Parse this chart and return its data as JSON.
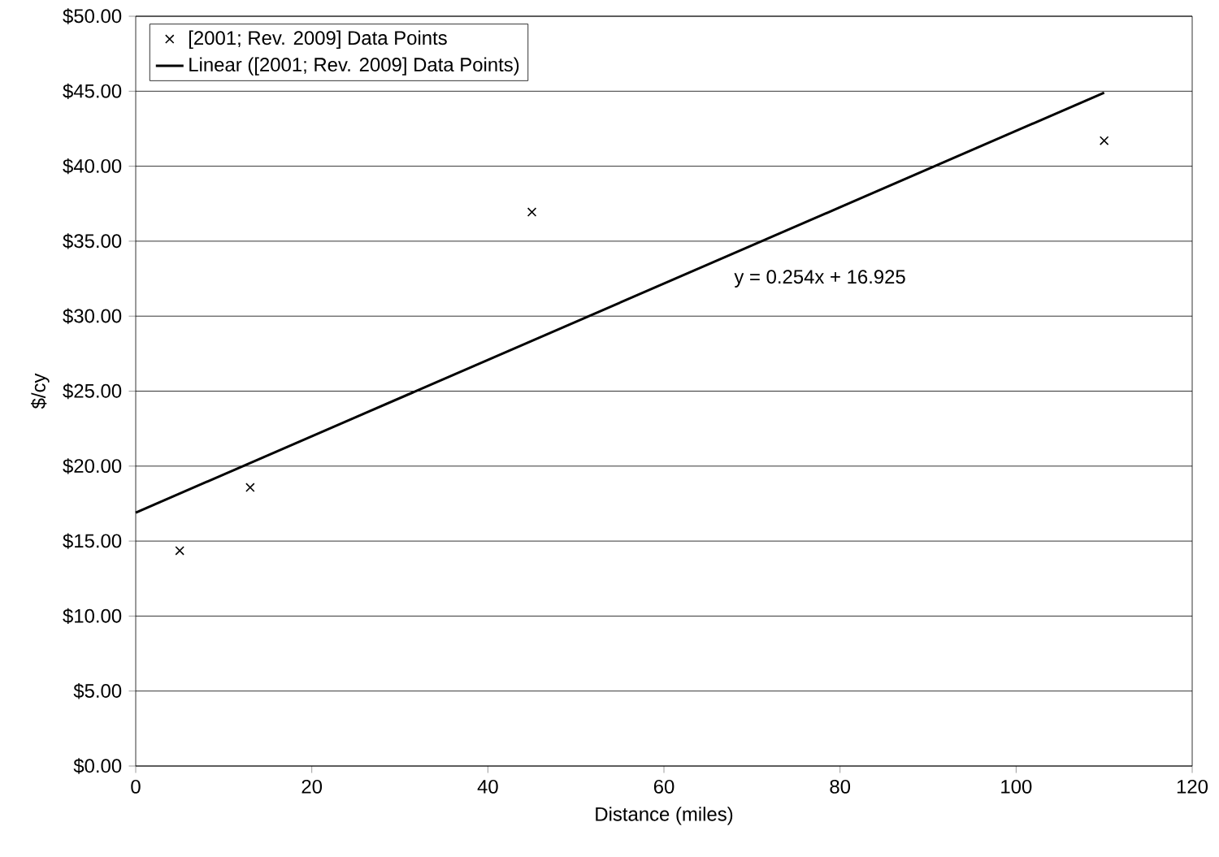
{
  "chart_data": {
    "type": "scatter",
    "xlabel": "Distance (miles)",
    "ylabel": "$/cy",
    "xlim": [
      0,
      120
    ],
    "xticks": [
      0,
      20,
      40,
      60,
      80,
      100,
      120
    ],
    "ylim": [
      0,
      50
    ],
    "yticks": [
      {
        "value": 0,
        "label": "$0.00"
      },
      {
        "value": 5,
        "label": "$5.00"
      },
      {
        "value": 10,
        "label": "$10.00"
      },
      {
        "value": 15,
        "label": "$15.00"
      },
      {
        "value": 20,
        "label": "$20.00"
      },
      {
        "value": 25,
        "label": "$25.00"
      },
      {
        "value": 30,
        "label": "$30.00"
      },
      {
        "value": 35,
        "label": "$35.00"
      },
      {
        "value": 40,
        "label": "$40.00"
      },
      {
        "value": 45,
        "label": "$45.00"
      },
      {
        "value": 50,
        "label": "$50.00"
      }
    ],
    "grid": "y",
    "legend": "top left",
    "series": [
      {
        "name": "[2001; Rev. 2009] Data Points",
        "color": "#000000",
        "marker": "cross",
        "x": [
          5,
          13,
          45,
          110
        ],
        "values": [
          14.36,
          18.58,
          36.94,
          41.7
        ]
      },
      {
        "name": "Linear ([2001; Rev. 2009] Data Points)",
        "type": "line",
        "color": "#000000",
        "marker": "none",
        "line_style": "solid",
        "x": [
          0,
          110
        ],
        "values": [
          16.9,
          44.9
        ]
      }
    ],
    "annotations": [
      "y = 0.254x + 16.925"
    ]
  }
}
